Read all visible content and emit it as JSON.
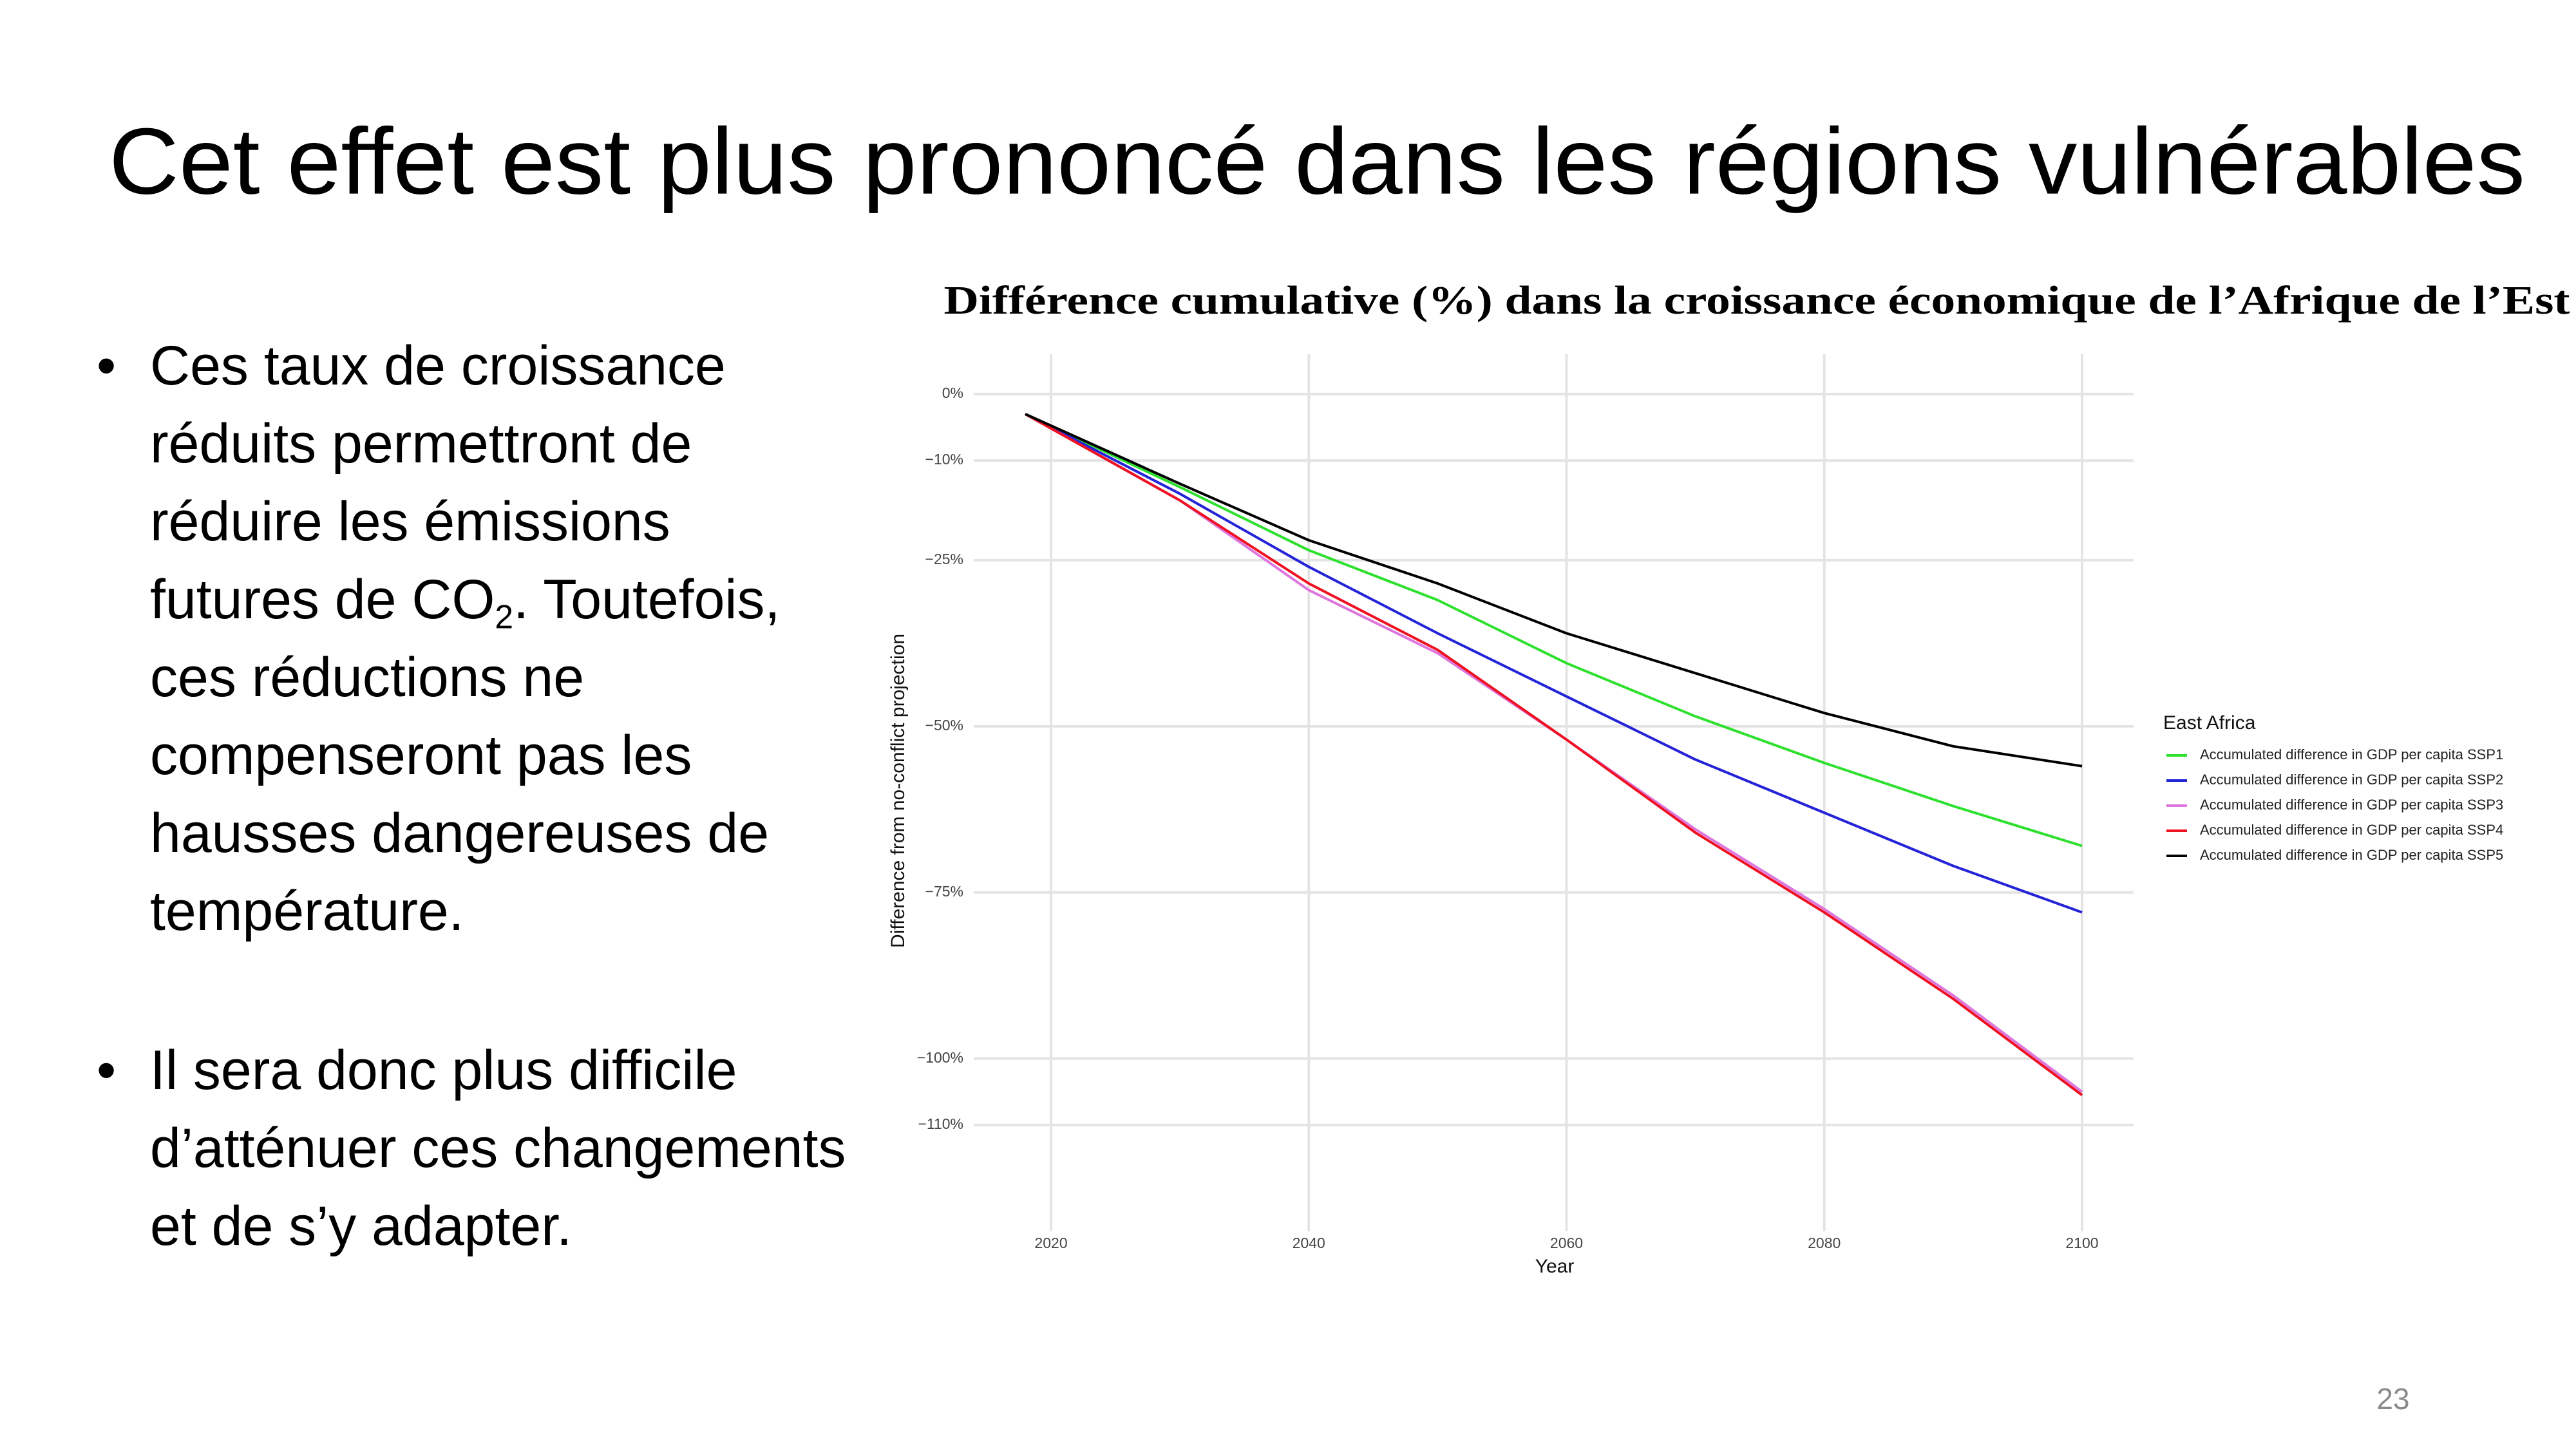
{
  "slide": {
    "title": "Cet effet est plus prononcé dans les régions vulnérables",
    "bullets": [
      {
        "text": "Ces taux de croissance réduits permettront de réduire les émissions futures de CO",
        "subscript": "2",
        "text_after": ". Toutefois, ces réductions ne compenseront pas les hausses dangereuses de température."
      },
      {
        "text": "Il sera donc plus difficile d’atténuer ces changements et de s’y adapter."
      }
    ],
    "page_number": "23"
  },
  "chart_data": {
    "type": "line",
    "title": "Différence cumulative (%) dans la croissance économique de l’Afrique de l’Est",
    "x_label": "Year",
    "y_label": "Difference from no-conflict projection",
    "legend_title": "East Africa",
    "legend_position": "right",
    "grid": true,
    "x": [
      2018,
      2030,
      2040,
      2050,
      2060,
      2070,
      2080,
      2090,
      2100
    ],
    "xlim": [
      2014,
      2104
    ],
    "xticks": [
      2020,
      2040,
      2060,
      2080,
      2100
    ],
    "ylim": [
      -126,
      6
    ],
    "yticks": [
      {
        "value": 0,
        "label": "0%"
      },
      {
        "value": -10,
        "label": "−10%"
      },
      {
        "value": -25,
        "label": "−25%"
      },
      {
        "value": -50,
        "label": "−50%"
      },
      {
        "value": -75,
        "label": "−75%"
      },
      {
        "value": -100,
        "label": "−100%"
      },
      {
        "value": -110,
        "label": "−110%"
      }
    ],
    "series": [
      {
        "name": "Accumulated difference in GDP per capita SSP1",
        "color": "#2ee02e",
        "values": [
          -3,
          -14,
          -23.5,
          -31,
          -40.5,
          -48.5,
          -55.5,
          -62,
          -68
        ]
      },
      {
        "name": "Accumulated difference in GDP per capita SSP2",
        "color": "#2323d8",
        "values": [
          -3,
          -15,
          -26,
          -36,
          -45.5,
          -55,
          -63,
          -71,
          -78
        ]
      },
      {
        "name": "Accumulated difference in GDP per capita SSP3",
        "color": "#dd77dd",
        "values": [
          -3,
          -16,
          -29.5,
          -39,
          -52,
          -65.5,
          -77.5,
          -90.5,
          -105
        ]
      },
      {
        "name": "Accumulated difference in GDP per capita SSP4",
        "color": "#ee1122",
        "values": [
          -3,
          -16,
          -28.5,
          -38.5,
          -52,
          -66,
          -78,
          -91,
          -105.5
        ]
      },
      {
        "name": "Accumulated difference in GDP per capita SSP5",
        "color": "#000000",
        "values": [
          -3,
          -13.5,
          -22,
          -28.5,
          -36,
          -42,
          -48,
          -53,
          -56
        ]
      }
    ]
  }
}
